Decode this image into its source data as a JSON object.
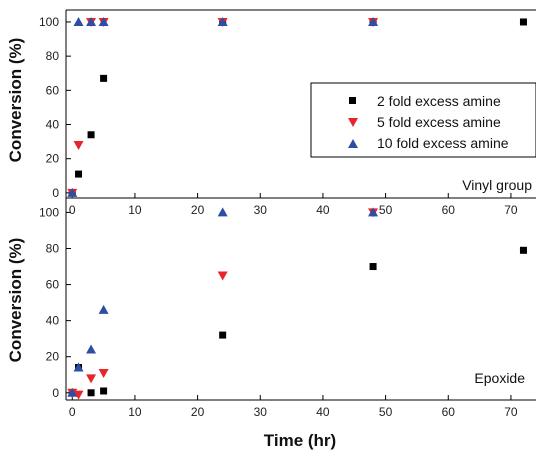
{
  "chart_data": [
    {
      "type": "scatter",
      "panel": "top",
      "annotation": "Vinyl group",
      "ylabel": "Conversion (%)",
      "xlabel": "",
      "xlim": [
        -1,
        74
      ],
      "ylim": [
        -3,
        107
      ],
      "xticks": [
        0,
        10,
        20,
        30,
        40,
        50,
        60,
        70
      ],
      "yticks": [
        0,
        20,
        40,
        60,
        80,
        100
      ],
      "legend": "center-right",
      "series": [
        {
          "name": "2 fold excess amine",
          "marker": "square",
          "color": "#000000",
          "x": [
            0,
            1,
            3,
            5,
            24,
            48,
            72
          ],
          "y": [
            0,
            11,
            34,
            67,
            100,
            100,
            100
          ]
        },
        {
          "name": "5 fold excess amine",
          "marker": "triangle-down",
          "color": "#e8262a",
          "x": [
            0,
            1,
            3,
            5,
            24,
            48
          ],
          "y": [
            0,
            28,
            100,
            100,
            100,
            100
          ]
        },
        {
          "name": "10 fold excess amine",
          "marker": "triangle-up",
          "color": "#2e4ea3",
          "x": [
            0,
            1,
            3,
            5,
            24,
            48
          ],
          "y": [
            0,
            100,
            100,
            100,
            100,
            100
          ]
        }
      ]
    },
    {
      "type": "scatter",
      "panel": "bottom",
      "annotation": "Epoxide",
      "ylabel": "Conversion (%)",
      "xlabel": "Time (hr)",
      "xlim": [
        -1,
        74
      ],
      "ylim": [
        -4,
        108
      ],
      "xticks": [
        0,
        10,
        20,
        30,
        40,
        50,
        60,
        70
      ],
      "yticks": [
        0,
        20,
        40,
        60,
        80,
        100
      ],
      "series": [
        {
          "name": "2 fold excess amine",
          "marker": "square",
          "color": "#000000",
          "x": [
            0,
            1,
            3,
            5,
            24,
            48,
            72
          ],
          "y": [
            0,
            14,
            0,
            1,
            32,
            70,
            79
          ]
        },
        {
          "name": "5 fold excess amine",
          "marker": "triangle-down",
          "color": "#e8262a",
          "x": [
            0,
            1,
            3,
            5,
            24,
            48
          ],
          "y": [
            0,
            -1,
            8,
            11,
            65,
            100
          ]
        },
        {
          "name": "10 fold excess amine",
          "marker": "triangle-up",
          "color": "#2e4ea3",
          "x": [
            0,
            1,
            3,
            5,
            24,
            48
          ],
          "y": [
            0,
            14,
            24,
            46,
            100,
            100
          ]
        }
      ]
    }
  ]
}
